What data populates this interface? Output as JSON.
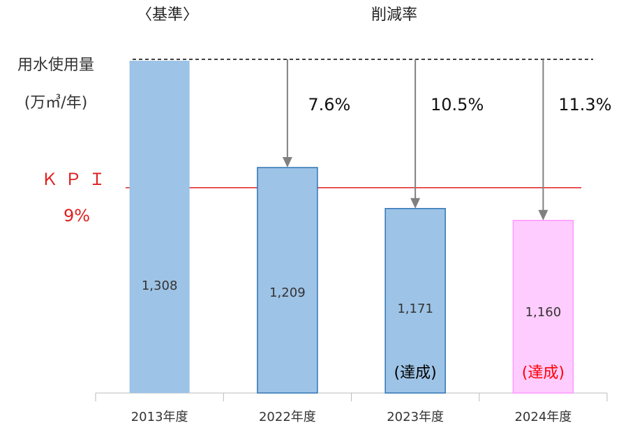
{
  "chart_data": {
    "type": "bar",
    "header_left": "〈基準〉",
    "header_right": "削減率",
    "y_label": [
      "用水使用量",
      "(万㎥/年)"
    ],
    "categories": [
      "2013年度",
      "2022年度",
      "2023年度",
      "2024年度"
    ],
    "values": [
      1308,
      1209,
      1171,
      1160
    ],
    "value_labels": [
      "1,308",
      "1,209",
      "1,171",
      "1,160"
    ],
    "colors": [
      "#9dc3e6",
      "#9dc3e6",
      "#9dc3e6",
      "#ffccff"
    ],
    "edge_colors": [
      null,
      "#2e75b6",
      "#2e75b6",
      "#ff99ff"
    ],
    "reductions": [
      null,
      7.6,
      10.5,
      11.3
    ],
    "reduction_labels": [
      null,
      "7.6%",
      "10.5%",
      "11.3%"
    ],
    "annotations": [
      null,
      null,
      "(達成)",
      "(達成)"
    ],
    "annotation_colors": [
      null,
      null,
      "#000000",
      "#ff0000"
    ],
    "kpi": {
      "label": "ＫＰＩ",
      "rate": {
        "value": 9,
        "label": "9%"
      },
      "color": "#e02020"
    },
    "ylim": [
      1000,
      1308
    ]
  }
}
